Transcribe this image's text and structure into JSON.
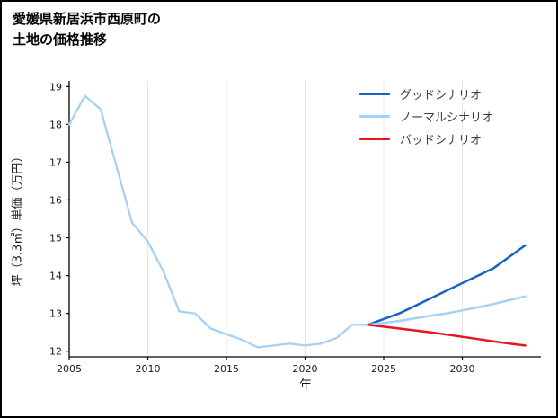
{
  "title_lines": [
    "愛媛県新居浜市西原町の",
    "土地の価格推移"
  ],
  "axes": {
    "xlabel": "年",
    "ylabel": "坪（3.3㎡）単価（万円）"
  },
  "chart_data": {
    "type": "line",
    "title": "愛媛県新居浜市西原町の土地の価格推移",
    "xlabel": "年",
    "ylabel": "坪（3.3㎡）単価（万円）",
    "xlim": [
      2005,
      2035
    ],
    "ylim": [
      11.85,
      19.15
    ],
    "xticks": [
      2005,
      2010,
      2015,
      2020,
      2025,
      2030
    ],
    "yticks": [
      12,
      13,
      14,
      15,
      16,
      17,
      18,
      19
    ],
    "grid": {
      "vertical": true,
      "horizontal": false,
      "color": "#e7e7e7"
    },
    "legend_position": "upper-right",
    "series": [
      {
        "id": "history",
        "label": "",
        "color": "#a7d1f4",
        "width": 2.3,
        "x": [
          2005,
          2006,
          2007,
          2008,
          2009,
          2010,
          2011,
          2012,
          2013,
          2014,
          2015,
          2016,
          2017,
          2018,
          2019,
          2020,
          2021,
          2022,
          2023,
          2024
        ],
        "y": [
          18.0,
          18.75,
          18.4,
          16.9,
          15.4,
          14.9,
          14.1,
          13.05,
          13.0,
          12.6,
          12.45,
          12.3,
          12.1,
          12.15,
          12.2,
          12.15,
          12.2,
          12.35,
          12.7,
          12.7
        ]
      },
      {
        "id": "good",
        "label": "グッドシナリオ",
        "color": "#1565c0",
        "width": 2.5,
        "x": [
          2024,
          2025,
          2026,
          2027,
          2028,
          2029,
          2030,
          2031,
          2032,
          2033,
          2034
        ],
        "y": [
          12.7,
          12.85,
          13.0,
          13.2,
          13.4,
          13.6,
          13.8,
          14.0,
          14.2,
          14.5,
          14.8
        ]
      },
      {
        "id": "normal",
        "label": "ノーマルシナリオ",
        "color": "#a7d1f4",
        "width": 2.5,
        "x": [
          2024,
          2025,
          2026,
          2027,
          2028,
          2029,
          2030,
          2031,
          2032,
          2033,
          2034
        ],
        "y": [
          12.7,
          12.75,
          12.8,
          12.87,
          12.94,
          13.0,
          13.08,
          13.16,
          13.25,
          13.35,
          13.45
        ]
      },
      {
        "id": "bad",
        "label": "バッドシナリオ",
        "color": "#e8131d",
        "width": 2.5,
        "x": [
          2024,
          2025,
          2026,
          2027,
          2028,
          2029,
          2030,
          2031,
          2032,
          2033,
          2034
        ],
        "y": [
          12.7,
          12.65,
          12.6,
          12.55,
          12.5,
          12.44,
          12.38,
          12.32,
          12.26,
          12.2,
          12.15
        ]
      }
    ]
  }
}
